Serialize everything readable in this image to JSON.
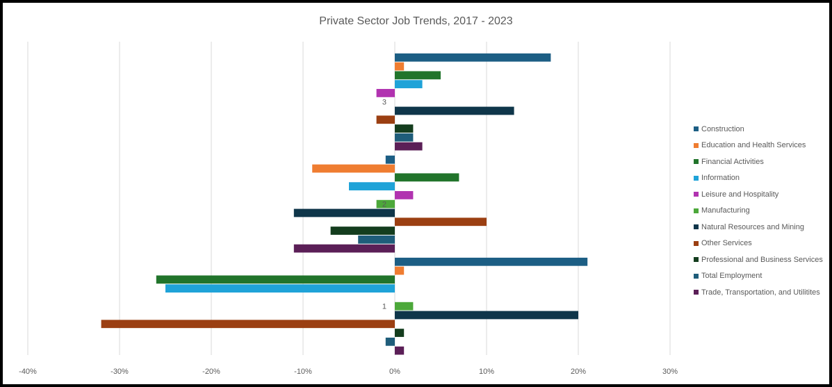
{
  "chart_data": {
    "type": "bar",
    "orientation": "horizontal",
    "title": "Private Sector Job Trends, 2017 - 2023",
    "xlabel": "",
    "ylabel": "",
    "xlim": [
      -40,
      30
    ],
    "x_ticks": [
      "-40%",
      "-30%",
      "-20%",
      "-10%",
      "0%",
      "10%",
      "20%",
      "30%"
    ],
    "grid": "vertical",
    "legend_position": "right",
    "categories": [
      "1",
      "2",
      "3"
    ],
    "series": [
      {
        "name": "Trade, Transportation, and Utilitites",
        "color": "#5b1f57",
        "values": [
          1,
          -11,
          3
        ]
      },
      {
        "name": "Total Employment",
        "color": "#1f5d7a",
        "values": [
          -1,
          -4,
          2
        ]
      },
      {
        "name": "Professional and Business Services",
        "color": "#143d1e",
        "values": [
          1,
          -7,
          2
        ]
      },
      {
        "name": "Other Services",
        "color": "#9b3f12",
        "values": [
          -32,
          10,
          -2
        ]
      },
      {
        "name": "Natural Resources and Mining",
        "color": "#0f364a",
        "values": [
          20,
          -11,
          13
        ]
      },
      {
        "name": "Manufacturing",
        "color": "#4ca83a",
        "values": [
          2,
          -2,
          0
        ]
      },
      {
        "name": "Leisure and Hospitality",
        "color": "#b133b0",
        "values": [
          0,
          2,
          -2
        ]
      },
      {
        "name": "Information",
        "color": "#1fa3d8",
        "values": [
          -25,
          -5,
          3
        ]
      },
      {
        "name": "Financial Activities",
        "color": "#21742b",
        "values": [
          -26,
          7,
          5
        ]
      },
      {
        "name": "Education and Health Services",
        "color": "#ef7d31",
        "values": [
          1,
          -9,
          1
        ]
      },
      {
        "name": "Construction",
        "color": "#1c5e84",
        "values": [
          21,
          -1,
          17
        ]
      }
    ]
  }
}
